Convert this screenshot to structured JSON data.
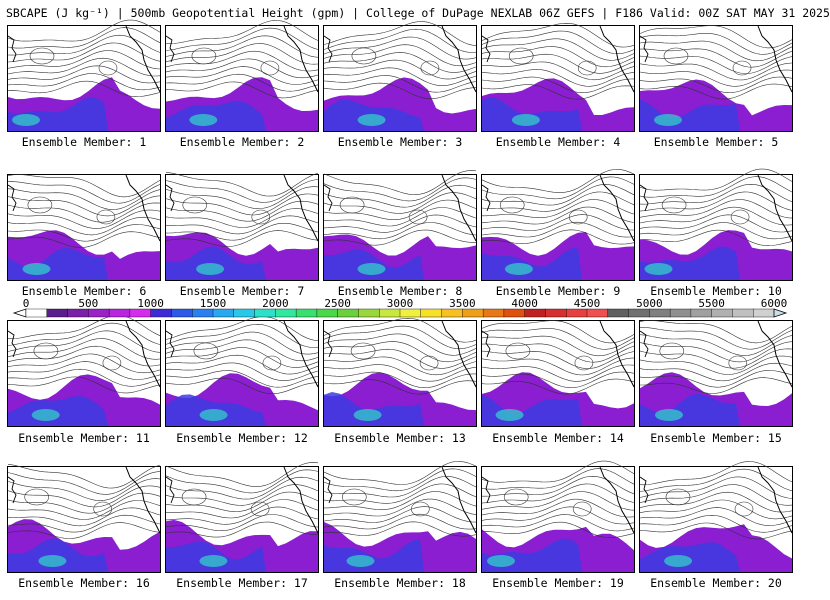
{
  "title": "SBCAPE (J kg⁻¹) | 500mb Geopotential Height (gpm) | College of DuPage NEXLAB 06Z GEFS | F186 Valid: 00Z SAT MAY 31 2025",
  "colorbar": {
    "ticks": [
      "0",
      "500",
      "1000",
      "1500",
      "2000",
      "2500",
      "3000",
      "3500",
      "4000",
      "4500",
      "5000",
      "5500",
      "6000"
    ],
    "colors": [
      "#ffffff",
      "#5a1e8c",
      "#7a1fa8",
      "#9b22c8",
      "#b824e0",
      "#d42df0",
      "#3c2ad8",
      "#2d5ae8",
      "#2a80f0",
      "#27a8f0",
      "#28c8e8",
      "#2ee0c8",
      "#30e8a0",
      "#38e070",
      "#48d848",
      "#6cd03c",
      "#98d83a",
      "#c8e840",
      "#f0f040",
      "#f8e028",
      "#f8c020",
      "#f0a018",
      "#e87818",
      "#e05010",
      "#c02020",
      "#d83030",
      "#e84040",
      "#f05050",
      "#606060",
      "#707070",
      "#808080",
      "#909090",
      "#a0a0a0",
      "#b0b0b0",
      "#c0c0c0",
      "#d0d0d0"
    ]
  },
  "members": [
    {
      "label": "Ensemble Member: 1"
    },
    {
      "label": "Ensemble Member: 2"
    },
    {
      "label": "Ensemble Member: 3"
    },
    {
      "label": "Ensemble Member: 4"
    },
    {
      "label": "Ensemble Member: 5"
    },
    {
      "label": "Ensemble Member: 6"
    },
    {
      "label": "Ensemble Member: 7"
    },
    {
      "label": "Ensemble Member: 8"
    },
    {
      "label": "Ensemble Member: 9"
    },
    {
      "label": "Ensemble Member: 10"
    },
    {
      "label": "Ensemble Member: 11"
    },
    {
      "label": "Ensemble Member: 12"
    },
    {
      "label": "Ensemble Member: 13"
    },
    {
      "label": "Ensemble Member: 14"
    },
    {
      "label": "Ensemble Member: 15"
    },
    {
      "label": "Ensemble Member: 16"
    },
    {
      "label": "Ensemble Member: 17"
    },
    {
      "label": "Ensemble Member: 18"
    },
    {
      "label": "Ensemble Member: 19"
    },
    {
      "label": "Ensemble Member: 20"
    }
  ],
  "style": {
    "cape_low": "#8a1ed0",
    "cape_mid": "#3c3ce0",
    "cape_high": "#30d8c8",
    "contour": "#333333",
    "coast": "#000000"
  }
}
